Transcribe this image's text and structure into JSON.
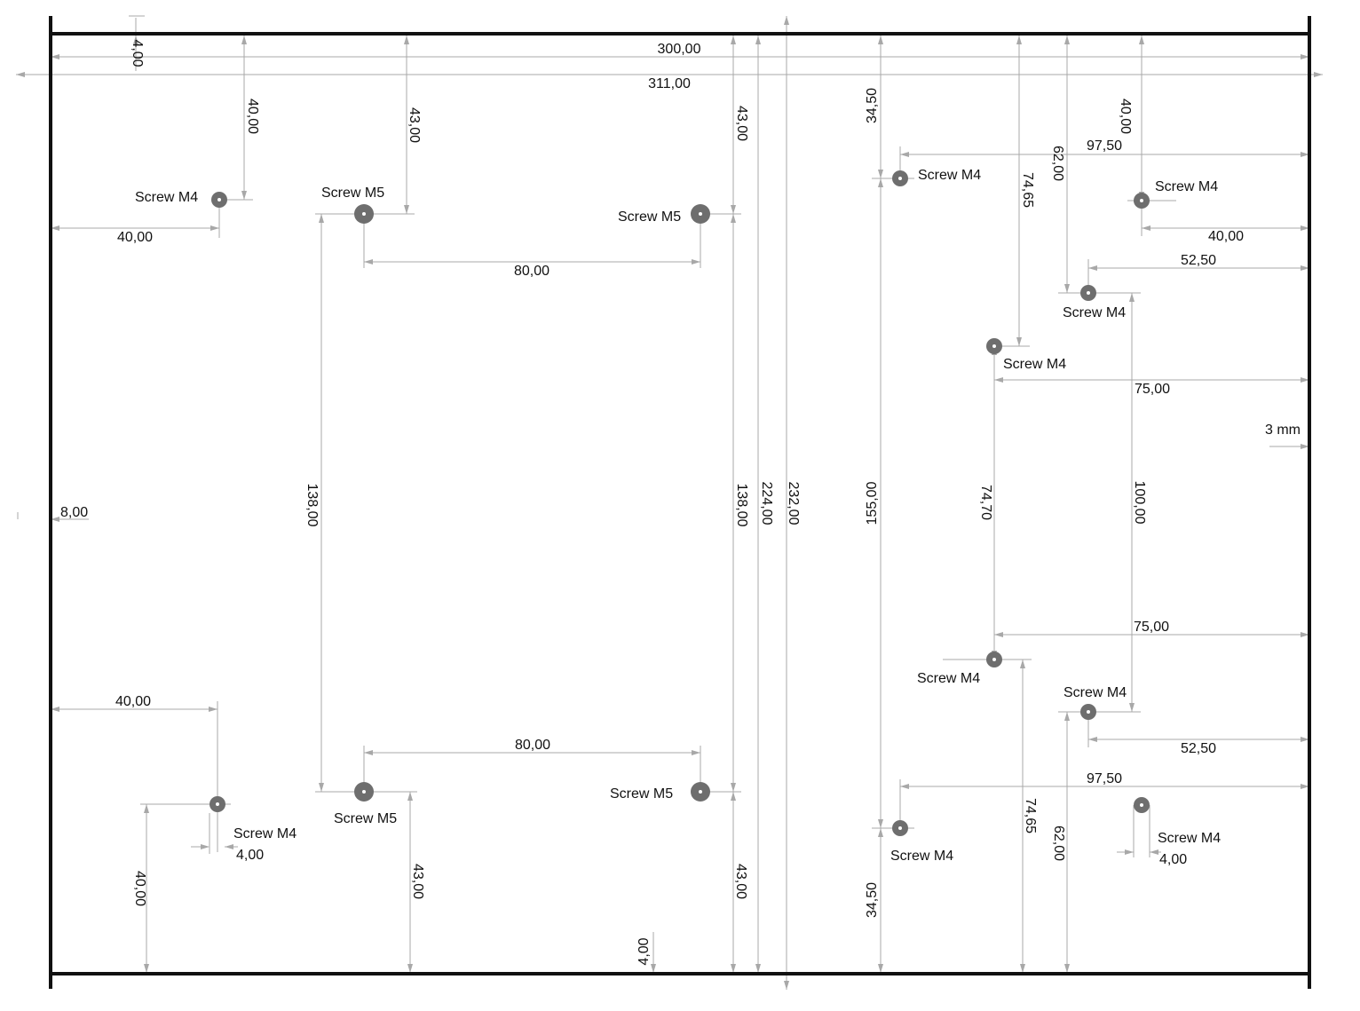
{
  "colors": {
    "frame": "#111111",
    "dimension_line": "#a8a8a8",
    "hole": "#6e6e6e",
    "text": "#111111",
    "background": "#ffffff"
  },
  "overall": {
    "width_inner": "300,00",
    "width_outer": "311,00",
    "edge_top": "4,00",
    "edge_bottom": "4,00",
    "edge_left": "8,00",
    "edge_right": "3 mm",
    "height_224": "224,00",
    "height_232": "232,00"
  },
  "left_holes": {
    "m4_top_label": "Screw M4",
    "m4_top_from_left": "40,00",
    "m4_top_from_top": "40,00",
    "m4_bottom_label": "Screw M4",
    "m4_bottom_from_left": "40,00",
    "m4_bottom_from_bottom": "40,00",
    "m4_bottom_offset": "4,00"
  },
  "m5_holes": {
    "top_left_label": "Screw M5",
    "top_right_label": "Screw M5",
    "bottom_left_label": "Screw M5",
    "bottom_right_label": "Screw M5",
    "spacing_top": "80,00",
    "spacing_bottom": "80,00",
    "vertical_left": "138,00",
    "vertical_right": "138,00",
    "top_left_from_top": "43,00",
    "top_right_from_top": "43,00",
    "bottom_left_from_bottom": "43,00",
    "bottom_right_from_bottom": "43,00"
  },
  "right_holes": {
    "a_top_label": "Screw M4",
    "a_bottom_label": "Screw M4",
    "a_top_from_top": "34,50",
    "a_bottom_from_bottom": "34,50",
    "a_vertical": "155,00",
    "a_top_from_right": "97,50",
    "a_bottom_from_right": "97,50",
    "b_top_label": "Screw M4",
    "b_bottom_label": "Screw M4",
    "b_top_from_top": "74,65",
    "b_bottom_from_bottom": "74,65",
    "b_vertical": "74,70",
    "b_top_from_right": "75,00",
    "b_bottom_from_right": "75,00",
    "c_top_label": "Screw M4",
    "c_bottom_label": "Screw M4",
    "c_top_from_top": "62,00",
    "c_bottom_from_bottom": "62,00",
    "c_top_from_right": "52,50",
    "c_bottom_from_right": "52,50",
    "c_vertical": "100,00",
    "d_top_label": "Screw M4",
    "d_bottom_label": "Screw M4",
    "d_top_from_top": "40,00",
    "d_top_from_right": "40,00",
    "d_bottom_offset": "4,00"
  }
}
